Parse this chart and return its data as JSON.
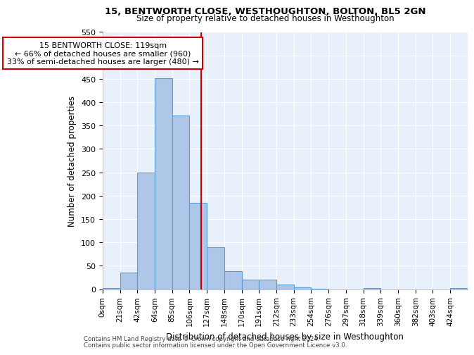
{
  "title": "15, BENTWORTH CLOSE, WESTHOUGHTON, BOLTON, BL5 2GN",
  "subtitle": "Size of property relative to detached houses in Westhoughton",
  "xlabel": "Distribution of detached houses by size in Westhoughton",
  "ylabel": "Number of detached properties",
  "bar_labels": [
    "0sqm",
    "21sqm",
    "42sqm",
    "64sqm",
    "85sqm",
    "106sqm",
    "127sqm",
    "148sqm",
    "170sqm",
    "191sqm",
    "212sqm",
    "233sqm",
    "254sqm",
    "276sqm",
    "297sqm",
    "318sqm",
    "339sqm",
    "360sqm",
    "382sqm",
    "403sqm",
    "424sqm"
  ],
  "bar_heights": [
    3,
    35,
    250,
    451,
    372,
    185,
    90,
    39,
    20,
    20,
    10,
    4,
    1,
    0,
    0,
    3,
    0,
    0,
    0,
    0,
    2
  ],
  "bar_color": "#aec6e8",
  "bar_edge_color": "#5a9fd4",
  "vline_x": 119,
  "bin_width": 21,
  "property_size": 119,
  "annotation_text": "15 BENTWORTH CLOSE: 119sqm\n← 66% of detached houses are smaller (960)\n33% of semi-detached houses are larger (480) →",
  "annotation_box_color": "#ffffff",
  "annotation_border_color": "#cc0000",
  "vline_color": "#cc0000",
  "ylim": [
    0,
    550
  ],
  "yticks": [
    0,
    50,
    100,
    150,
    200,
    250,
    300,
    350,
    400,
    450,
    500,
    550
  ],
  "footer_line1": "Contains HM Land Registry data © Crown copyright and database right 2024.",
  "footer_line2": "Contains public sector information licensed under the Open Government Licence v3.0.",
  "plot_bg_color": "#e8f0fb"
}
